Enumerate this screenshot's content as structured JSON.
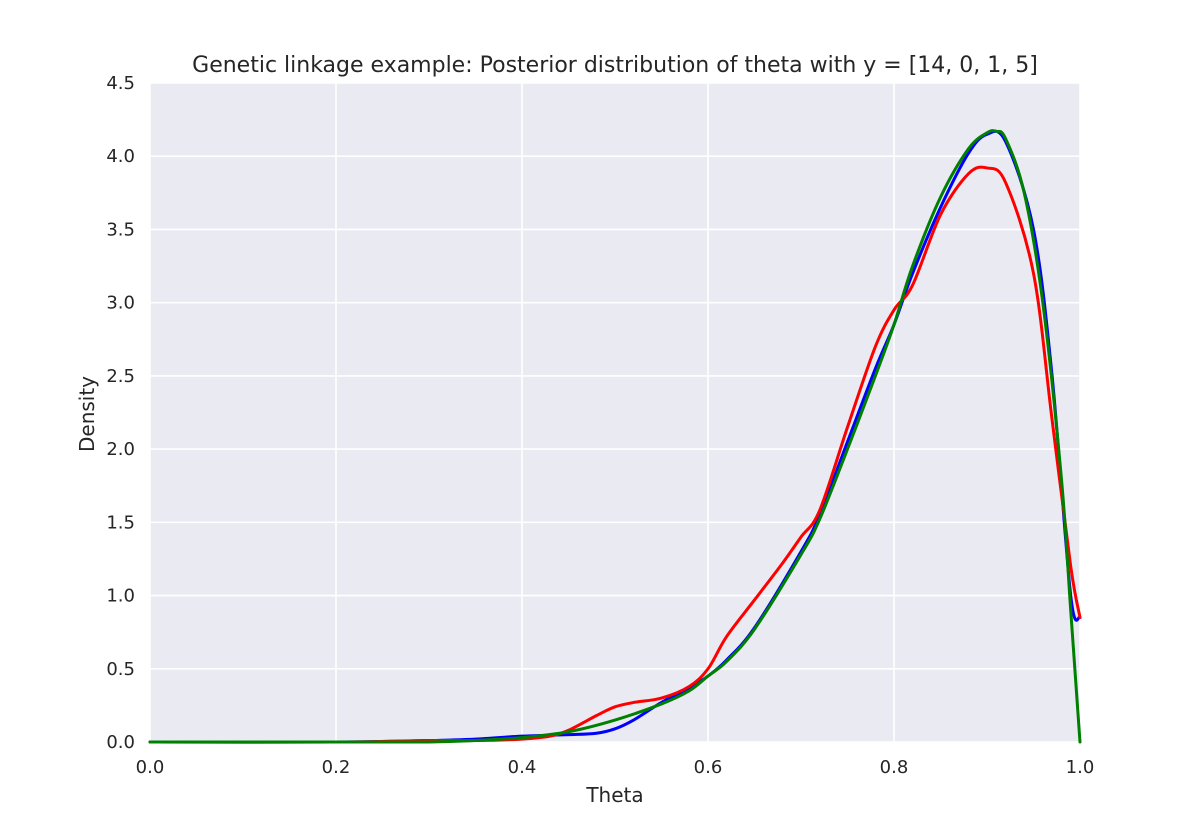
{
  "chart_data": {
    "type": "line",
    "title": "Genetic linkage example: Posterior distribution of theta with y = [14, 0, 1, 5]",
    "xlabel": "Theta",
    "ylabel": "Density",
    "xlim": [
      0.0,
      1.0
    ],
    "ylim": [
      0.0,
      4.5
    ],
    "xticks": [
      "0.0",
      "0.2",
      "0.4",
      "0.6",
      "0.8",
      "1.0"
    ],
    "yticks": [
      "0.0",
      "0.5",
      "1.0",
      "1.5",
      "2.0",
      "2.5",
      "3.0",
      "3.5",
      "4.0",
      "4.5"
    ],
    "grid": true,
    "background_color": "#eaeaf2",
    "series": [
      {
        "color": "#0000ff",
        "x": [
          0.0,
          0.2,
          0.3,
          0.35,
          0.4,
          0.45,
          0.48,
          0.5,
          0.52,
          0.55,
          0.58,
          0.6,
          0.62,
          0.65,
          0.7,
          0.72,
          0.75,
          0.78,
          0.8,
          0.82,
          0.85,
          0.88,
          0.9,
          0.92,
          0.95,
          0.97,
          0.99,
          1.0
        ],
        "y": [
          0.0,
          0.0,
          0.01,
          0.02,
          0.04,
          0.05,
          0.06,
          0.09,
          0.15,
          0.27,
          0.37,
          0.45,
          0.56,
          0.78,
          1.3,
          1.55,
          2.05,
          2.55,
          2.85,
          3.2,
          3.65,
          4.02,
          4.15,
          4.1,
          3.5,
          2.5,
          1.0,
          0.85
        ]
      },
      {
        "color": "#ff0000",
        "x": [
          0.0,
          0.2,
          0.3,
          0.35,
          0.4,
          0.43,
          0.45,
          0.48,
          0.5,
          0.52,
          0.55,
          0.58,
          0.6,
          0.62,
          0.65,
          0.68,
          0.7,
          0.72,
          0.75,
          0.78,
          0.8,
          0.82,
          0.85,
          0.88,
          0.9,
          0.92,
          0.95,
          0.97,
          0.99,
          1.0
        ],
        "y": [
          0.0,
          0.0,
          0.01,
          0.01,
          0.02,
          0.04,
          0.08,
          0.18,
          0.24,
          0.27,
          0.3,
          0.38,
          0.5,
          0.72,
          0.97,
          1.22,
          1.4,
          1.58,
          2.15,
          2.7,
          2.95,
          3.12,
          3.6,
          3.88,
          3.92,
          3.82,
          3.2,
          2.2,
          1.2,
          0.85
        ]
      },
      {
        "color": "#008000",
        "x": [
          0.0,
          0.2,
          0.3,
          0.35,
          0.4,
          0.45,
          0.5,
          0.55,
          0.58,
          0.6,
          0.62,
          0.65,
          0.7,
          0.72,
          0.75,
          0.78,
          0.8,
          0.82,
          0.85,
          0.88,
          0.9,
          0.91,
          0.92,
          0.94,
          0.96,
          0.98,
          0.99,
          1.0
        ],
        "y": [
          0.0,
          0.0,
          0.0,
          0.01,
          0.03,
          0.07,
          0.15,
          0.26,
          0.35,
          0.45,
          0.55,
          0.77,
          1.28,
          1.52,
          2.0,
          2.5,
          2.85,
          3.25,
          3.72,
          4.05,
          4.16,
          4.17,
          4.12,
          3.75,
          3.0,
          1.8,
          0.9,
          0.0
        ]
      }
    ]
  }
}
